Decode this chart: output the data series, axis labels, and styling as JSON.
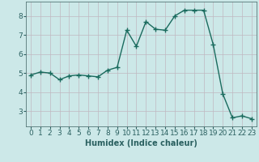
{
  "x": [
    0,
    1,
    2,
    3,
    4,
    5,
    6,
    7,
    8,
    9,
    10,
    11,
    12,
    13,
    14,
    15,
    16,
    17,
    18,
    19,
    20,
    21,
    22,
    23
  ],
  "y": [
    4.9,
    5.05,
    5.0,
    4.65,
    4.85,
    4.9,
    4.85,
    4.8,
    5.15,
    5.3,
    7.25,
    6.4,
    7.7,
    7.3,
    7.25,
    8.0,
    8.3,
    8.3,
    8.3,
    6.5,
    3.9,
    2.65,
    2.75,
    2.6
  ],
  "line_color": "#1a6b5e",
  "marker": "+",
  "marker_size": 4,
  "line_width": 1.0,
  "background_color": "#cce8e8",
  "grid_color": "#c0b8c0",
  "xlabel": "Humidex (Indice chaleur)",
  "xlabel_fontsize": 7,
  "tick_fontsize": 6.5,
  "tick_color": "#2a6060",
  "xlim": [
    -0.5,
    23.5
  ],
  "ylim": [
    2.2,
    8.75
  ],
  "yticks": [
    3,
    4,
    5,
    6,
    7,
    8
  ],
  "xticks": [
    0,
    1,
    2,
    3,
    4,
    5,
    6,
    7,
    8,
    9,
    10,
    11,
    12,
    13,
    14,
    15,
    16,
    17,
    18,
    19,
    20,
    21,
    22,
    23
  ]
}
